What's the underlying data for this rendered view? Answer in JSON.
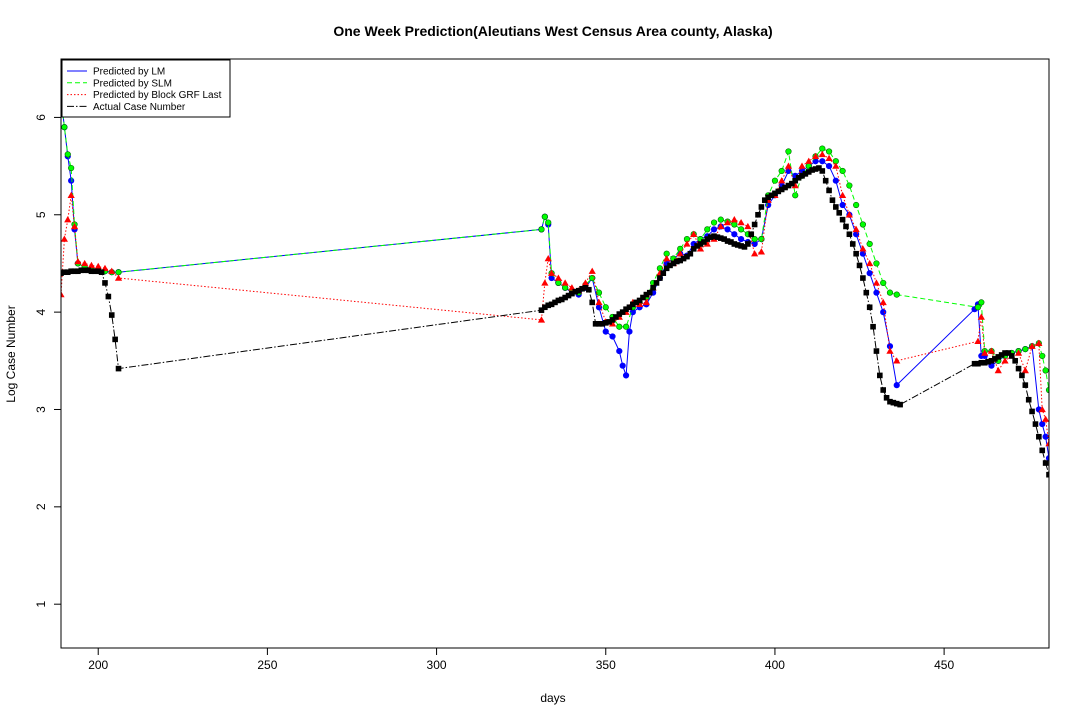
{
  "chart_data": {
    "type": "line",
    "title": "One Week Prediction(Aleutians West Census Area county, Alaska)",
    "xlabel": "days",
    "ylabel": "Log Case Number",
    "xlim": [
      189,
      481
    ],
    "ylim": [
      0.55,
      6.6
    ],
    "xticks": [
      200,
      250,
      300,
      350,
      400,
      450
    ],
    "yticks": [
      1,
      2,
      3,
      4,
      5,
      6
    ],
    "grid": false,
    "legend_position": "top-left",
    "series": [
      {
        "name": "Predicted by LM",
        "color": "#0000FF",
        "line_style": "solid",
        "marker": "circle",
        "x": [
          189,
          190,
          191,
          192,
          193,
          194,
          196,
          198,
          200,
          202,
          204,
          206,
          331,
          332,
          333,
          334,
          336,
          338,
          340,
          342,
          344,
          346,
          348,
          350,
          352,
          354,
          355,
          356,
          357,
          358,
          360,
          362,
          364,
          366,
          368,
          370,
          372,
          374,
          376,
          378,
          380,
          382,
          384,
          386,
          388,
          390,
          392,
          394,
          396,
          398,
          400,
          402,
          404,
          406,
          408,
          410,
          412,
          414,
          416,
          418,
          420,
          422,
          424,
          426,
          428,
          430,
          432,
          434,
          436,
          459,
          460,
          461,
          462,
          464,
          466,
          468,
          470,
          472,
          474,
          476,
          478,
          479,
          480,
          481
        ],
        "y": [
          6.2,
          5.9,
          5.6,
          5.35,
          4.85,
          4.5,
          4.46,
          4.44,
          4.43,
          4.42,
          4.41,
          4.41,
          4.85,
          4.98,
          4.9,
          4.35,
          4.3,
          4.25,
          4.2,
          4.18,
          4.25,
          4.35,
          4.05,
          3.8,
          3.75,
          3.6,
          3.45,
          3.35,
          3.8,
          4.0,
          4.05,
          4.08,
          4.2,
          4.35,
          4.5,
          4.55,
          4.6,
          4.58,
          4.7,
          4.75,
          4.78,
          4.85,
          4.88,
          4.85,
          4.8,
          4.75,
          4.72,
          4.7,
          4.75,
          5.1,
          5.2,
          5.3,
          5.45,
          5.4,
          5.45,
          5.5,
          5.55,
          5.55,
          5.5,
          5.35,
          5.1,
          5.0,
          4.8,
          4.6,
          4.4,
          4.2,
          4.0,
          3.65,
          3.25,
          4.03,
          4.08,
          3.55,
          3.55,
          3.45,
          3.5,
          3.55,
          3.58,
          3.6,
          3.62,
          3.65,
          3.0,
          2.85,
          2.72,
          2.5
        ]
      },
      {
        "name": "Predicted by SLM",
        "color": "#00FF00",
        "line_style": "dashed",
        "marker": "circle",
        "x": [
          189,
          190,
          191,
          192,
          193,
          194,
          196,
          198,
          200,
          202,
          204,
          206,
          331,
          332,
          333,
          334,
          336,
          338,
          340,
          342,
          344,
          346,
          348,
          350,
          352,
          354,
          356,
          358,
          360,
          362,
          364,
          366,
          368,
          370,
          372,
          374,
          376,
          378,
          380,
          382,
          384,
          386,
          388,
          390,
          392,
          394,
          396,
          398,
          400,
          402,
          404,
          406,
          408,
          410,
          412,
          414,
          416,
          418,
          420,
          422,
          424,
          426,
          428,
          430,
          432,
          434,
          436,
          460,
          461,
          462,
          464,
          466,
          468,
          470,
          472,
          474,
          476,
          478,
          479,
          480,
          481
        ],
        "y": [
          6.2,
          5.9,
          5.62,
          5.48,
          4.9,
          4.5,
          4.46,
          4.45,
          4.43,
          4.42,
          4.41,
          4.41,
          4.85,
          4.98,
          4.92,
          4.4,
          4.3,
          4.25,
          4.22,
          4.2,
          4.28,
          4.35,
          4.2,
          4.05,
          3.95,
          3.85,
          3.85,
          4.05,
          4.1,
          4.15,
          4.3,
          4.45,
          4.6,
          4.55,
          4.65,
          4.75,
          4.8,
          4.75,
          4.85,
          4.92,
          4.95,
          4.93,
          4.9,
          4.85,
          4.8,
          4.75,
          4.75,
          5.2,
          5.35,
          5.45,
          5.65,
          5.2,
          5.4,
          5.5,
          5.6,
          5.68,
          5.65,
          5.55,
          5.45,
          5.3,
          5.1,
          4.9,
          4.7,
          4.5,
          4.3,
          4.2,
          4.18,
          4.05,
          4.1,
          3.6,
          3.6,
          3.5,
          3.55,
          3.58,
          3.6,
          3.62,
          3.65,
          3.68,
          3.55,
          3.4,
          3.2
        ]
      },
      {
        "name": "Predicted by Block GRF Last",
        "color": "#FF0000",
        "line_style": "dotted",
        "marker": "triangle",
        "x": [
          189,
          190,
          191,
          192,
          193,
          194,
          196,
          198,
          200,
          202,
          204,
          206,
          331,
          332,
          333,
          334,
          336,
          338,
          340,
          342,
          344,
          346,
          348,
          350,
          352,
          354,
          356,
          358,
          360,
          362,
          364,
          366,
          368,
          370,
          372,
          374,
          376,
          378,
          380,
          382,
          384,
          386,
          388,
          390,
          392,
          394,
          396,
          398,
          400,
          402,
          404,
          406,
          408,
          410,
          412,
          414,
          416,
          418,
          420,
          422,
          424,
          426,
          428,
          430,
          432,
          434,
          436,
          460,
          461,
          462,
          464,
          466,
          468,
          470,
          472,
          474,
          476,
          478,
          479,
          480,
          481
        ],
        "y": [
          4.18,
          4.75,
          4.95,
          5.2,
          4.88,
          4.52,
          4.5,
          4.48,
          4.47,
          4.45,
          4.42,
          4.35,
          3.92,
          4.3,
          4.55,
          4.4,
          4.35,
          4.3,
          4.25,
          4.22,
          4.3,
          4.42,
          4.1,
          3.9,
          3.88,
          3.95,
          4.0,
          4.1,
          4.08,
          4.1,
          4.25,
          4.4,
          4.55,
          4.5,
          4.6,
          4.7,
          4.8,
          4.65,
          4.7,
          4.75,
          4.88,
          4.92,
          4.95,
          4.92,
          4.88,
          4.6,
          4.62,
          5.15,
          5.2,
          5.35,
          5.5,
          5.3,
          5.5,
          5.55,
          5.6,
          5.62,
          5.58,
          5.5,
          5.2,
          5.0,
          4.85,
          4.65,
          4.5,
          4.3,
          4.1,
          3.6,
          3.5,
          3.7,
          3.95,
          3.58,
          3.6,
          3.4,
          3.5,
          3.55,
          3.58,
          3.4,
          3.65,
          3.68,
          3.0,
          2.9,
          2.65
        ]
      },
      {
        "name": "Actual Case Number",
        "color": "#000000",
        "line_style": "dotdash",
        "marker": "square",
        "x": [
          189,
          190,
          191,
          192,
          193,
          194,
          195,
          196,
          197,
          198,
          199,
          200,
          201,
          202,
          203,
          204,
          205,
          206,
          331,
          332,
          333,
          334,
          335,
          336,
          337,
          338,
          339,
          340,
          341,
          342,
          343,
          344,
          345,
          346,
          347,
          348,
          349,
          350,
          351,
          352,
          353,
          354,
          355,
          356,
          357,
          358,
          359,
          360,
          361,
          362,
          363,
          364,
          365,
          366,
          367,
          368,
          369,
          370,
          371,
          372,
          373,
          374,
          375,
          376,
          377,
          378,
          379,
          380,
          381,
          382,
          383,
          384,
          385,
          386,
          387,
          388,
          389,
          390,
          391,
          392,
          393,
          394,
          395,
          396,
          397,
          398,
          399,
          400,
          401,
          402,
          403,
          404,
          405,
          406,
          407,
          408,
          409,
          410,
          411,
          412,
          413,
          414,
          415,
          416,
          417,
          418,
          419,
          420,
          421,
          422,
          423,
          424,
          425,
          426,
          427,
          428,
          429,
          430,
          431,
          432,
          433,
          434,
          435,
          436,
          437,
          459,
          460,
          461,
          462,
          463,
          464,
          465,
          466,
          467,
          468,
          469,
          470,
          471,
          472,
          473,
          474,
          475,
          476,
          477,
          478,
          479,
          480,
          481
        ],
        "y": [
          4.4,
          4.41,
          4.41,
          4.42,
          4.42,
          4.42,
          4.43,
          4.43,
          4.43,
          4.42,
          4.42,
          4.42,
          4.41,
          4.3,
          4.16,
          3.97,
          3.72,
          3.42,
          4.02,
          4.05,
          4.07,
          4.08,
          4.1,
          4.12,
          4.13,
          4.15,
          4.17,
          4.19,
          4.21,
          4.22,
          4.24,
          4.25,
          4.23,
          4.1,
          3.88,
          3.88,
          3.88,
          3.89,
          3.9,
          3.92,
          3.95,
          3.98,
          4.0,
          4.03,
          4.05,
          4.08,
          4.1,
          4.12,
          4.15,
          4.18,
          4.2,
          4.25,
          4.3,
          4.35,
          4.4,
          4.45,
          4.48,
          4.5,
          4.52,
          4.53,
          4.55,
          4.57,
          4.6,
          4.65,
          4.68,
          4.7,
          4.72,
          4.75,
          4.77,
          4.78,
          4.77,
          4.76,
          4.75,
          4.73,
          4.72,
          4.7,
          4.69,
          4.68,
          4.67,
          4.7,
          4.8,
          4.9,
          5.0,
          5.08,
          5.15,
          5.18,
          5.2,
          5.22,
          5.24,
          5.26,
          5.28,
          5.3,
          5.32,
          5.35,
          5.38,
          5.4,
          5.42,
          5.44,
          5.46,
          5.47,
          5.48,
          5.45,
          5.35,
          5.25,
          5.15,
          5.08,
          5.02,
          4.95,
          4.88,
          4.8,
          4.7,
          4.6,
          4.48,
          4.35,
          4.2,
          4.05,
          3.85,
          3.6,
          3.35,
          3.2,
          3.12,
          3.08,
          3.07,
          3.06,
          3.05,
          3.47,
          3.47,
          3.48,
          3.48,
          3.49,
          3.5,
          3.52,
          3.54,
          3.56,
          3.58,
          3.58,
          3.55,
          3.5,
          3.42,
          3.35,
          3.25,
          3.1,
          2.98,
          2.85,
          2.72,
          2.58,
          2.45,
          2.33
        ]
      }
    ]
  }
}
